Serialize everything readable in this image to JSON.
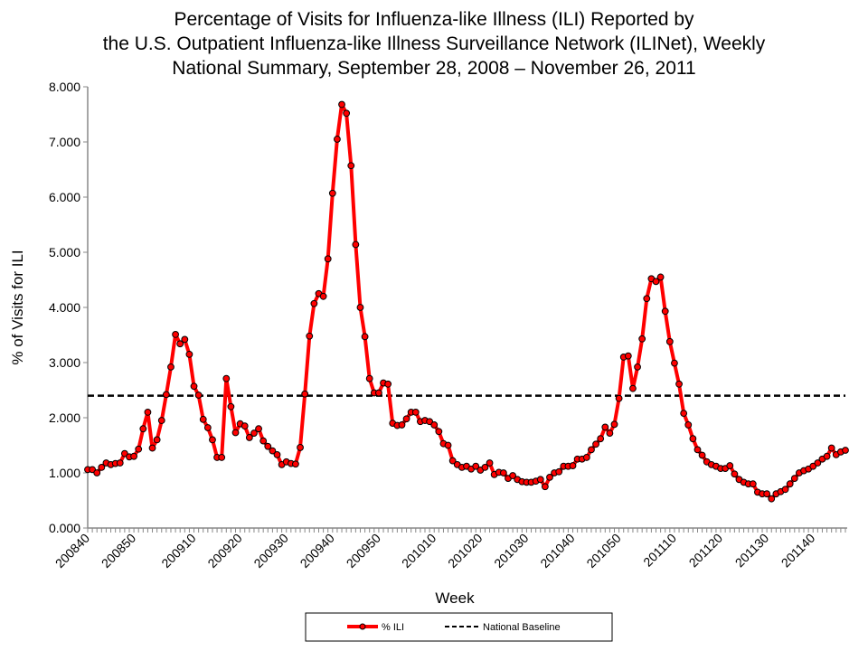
{
  "chart_data": {
    "type": "line",
    "title_lines": [
      "Percentage of Visits for Influenza-like Illness (ILI) Reported by",
      "the U.S. Outpatient Influenza-like Illness Surveillance Network (ILINet), Weekly",
      "National Summary, September 28, 2008 – November 26, 2011"
    ],
    "xlabel": "Week",
    "ylabel": "% of Visits for ILI",
    "ylim": [
      0,
      8
    ],
    "yticks": [
      "0.000",
      "1.000",
      "2.000",
      "3.000",
      "4.000",
      "5.000",
      "6.000",
      "7.000",
      "8.000"
    ],
    "xtick_labels": [
      "200840",
      "200850",
      "200910",
      "200920",
      "200930",
      "200940",
      "200950",
      "201010",
      "201020",
      "201030",
      "201040",
      "201050",
      "201110",
      "201120",
      "201130",
      "201140"
    ],
    "grid": false,
    "legend_placement": "bottom",
    "weeks": [
      "200840",
      "200841",
      "200842",
      "200843",
      "200844",
      "200845",
      "200846",
      "200847",
      "200848",
      "200849",
      "200850",
      "200851",
      "200852",
      "200853",
      "200901",
      "200902",
      "200903",
      "200904",
      "200905",
      "200906",
      "200907",
      "200908",
      "200909",
      "200910",
      "200911",
      "200912",
      "200913",
      "200914",
      "200915",
      "200916",
      "200917",
      "200918",
      "200919",
      "200920",
      "200921",
      "200922",
      "200923",
      "200924",
      "200925",
      "200926",
      "200927",
      "200928",
      "200929",
      "200930",
      "200931",
      "200932",
      "200933",
      "200934",
      "200935",
      "200936",
      "200937",
      "200938",
      "200939",
      "200940",
      "200941",
      "200942",
      "200943",
      "200944",
      "200945",
      "200946",
      "200947",
      "200948",
      "200949",
      "200950",
      "200951",
      "200952",
      "201001",
      "201002",
      "201003",
      "201004",
      "201005",
      "201006",
      "201007",
      "201008",
      "201009",
      "201010",
      "201011",
      "201012",
      "201013",
      "201014",
      "201015",
      "201016",
      "201017",
      "201018",
      "201019",
      "201020",
      "201021",
      "201022",
      "201023",
      "201024",
      "201025",
      "201026",
      "201027",
      "201028",
      "201029",
      "201030",
      "201031",
      "201032",
      "201033",
      "201034",
      "201035",
      "201036",
      "201037",
      "201038",
      "201039",
      "201040",
      "201041",
      "201042",
      "201043",
      "201044",
      "201045",
      "201046",
      "201047",
      "201048",
      "201049",
      "201050",
      "201051",
      "201052",
      "201101",
      "201102",
      "201103",
      "201104",
      "201105",
      "201106",
      "201107",
      "201108",
      "201109",
      "201110",
      "201111",
      "201112",
      "201113",
      "201114",
      "201115",
      "201116",
      "201117",
      "201118",
      "201119",
      "201120",
      "201121",
      "201122",
      "201123",
      "201124",
      "201125",
      "201126",
      "201127",
      "201128",
      "201129",
      "201130",
      "201131",
      "201132",
      "201133",
      "201134",
      "201135",
      "201136",
      "201137",
      "201138",
      "201139",
      "201140",
      "201141",
      "201142",
      "201143",
      "201144",
      "201145",
      "201146",
      "201147"
    ],
    "series": [
      {
        "name": "% ILI",
        "color": "#ff0000",
        "marker_color": "#ff0000",
        "values": [
          1.06,
          1.06,
          1.0,
          1.1,
          1.18,
          1.15,
          1.17,
          1.18,
          1.35,
          1.29,
          1.3,
          1.43,
          1.8,
          2.1,
          1.45,
          1.6,
          1.95,
          2.42,
          2.92,
          3.51,
          3.34,
          3.42,
          3.15,
          2.57,
          2.41,
          1.97,
          1.82,
          1.6,
          1.28,
          1.28,
          2.71,
          2.2,
          1.73,
          1.89,
          1.85,
          1.64,
          1.72,
          1.8,
          1.58,
          1.48,
          1.4,
          1.33,
          1.15,
          1.2,
          1.17,
          1.16,
          1.46,
          2.43,
          3.48,
          4.07,
          4.25,
          4.2,
          4.88,
          6.07,
          7.05,
          7.68,
          7.52,
          6.57,
          5.14,
          4.0,
          3.47,
          2.71,
          2.45,
          2.45,
          2.63,
          2.61,
          1.9,
          1.86,
          1.87,
          1.98,
          2.1,
          2.1,
          1.93,
          1.95,
          1.93,
          1.87,
          1.75,
          1.53,
          1.5,
          1.22,
          1.15,
          1.1,
          1.12,
          1.07,
          1.12,
          1.05,
          1.1,
          1.18,
          0.97,
          1.01,
          1.0,
          0.9,
          0.95,
          0.88,
          0.84,
          0.83,
          0.83,
          0.85,
          0.88,
          0.75,
          0.92,
          1.0,
          1.02,
          1.12,
          1.12,
          1.13,
          1.25,
          1.25,
          1.28,
          1.42,
          1.52,
          1.62,
          1.83,
          1.72,
          1.88,
          2.35,
          3.1,
          3.12,
          2.53,
          2.92,
          3.43,
          4.16,
          4.52,
          4.47,
          4.55,
          3.93,
          3.38,
          2.99,
          2.61,
          2.08,
          1.87,
          1.62,
          1.42,
          1.32,
          1.2,
          1.15,
          1.12,
          1.08,
          1.08,
          1.13,
          0.98,
          0.88,
          0.83,
          0.8,
          0.8,
          0.65,
          0.62,
          0.62,
          0.53,
          0.62,
          0.66,
          0.7,
          0.8,
          0.9,
          1.0,
          1.04,
          1.07,
          1.12,
          1.18,
          1.25,
          1.3,
          1.45,
          1.33,
          1.38,
          1.41
        ]
      },
      {
        "name": "National Baseline",
        "color": "#000000",
        "style": "dashed",
        "value": 2.4
      }
    ]
  }
}
